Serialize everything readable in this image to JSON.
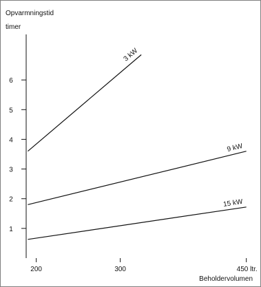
{
  "chart_data": {
    "type": "line",
    "ylabel_line1": "Opvarmningstid",
    "ylabel_line2": "timer",
    "xlabel": "Beholdervolumen",
    "xlim": [
      188,
      456
    ],
    "ylim": [
      0,
      8.6
    ],
    "x_ticks": [
      {
        "value": 200,
        "label": "200"
      },
      {
        "value": 300,
        "label": "300"
      },
      {
        "value": 450,
        "label": "450 ltr."
      }
    ],
    "y_ticks": [
      {
        "value": 1,
        "label": "1"
      },
      {
        "value": 2,
        "label": "2"
      },
      {
        "value": 3,
        "label": "3"
      },
      {
        "value": 4,
        "label": "4"
      },
      {
        "value": 5,
        "label": "5"
      },
      {
        "value": 6,
        "label": "6"
      }
    ],
    "series": [
      {
        "name": "3 kW",
        "x": [
          190,
          325
        ],
        "y": [
          3.6,
          6.85
        ]
      },
      {
        "name": "9 kW",
        "x": [
          190,
          450
        ],
        "y": [
          1.8,
          3.6
        ]
      },
      {
        "name": "15 kW",
        "x": [
          190,
          450
        ],
        "y": [
          0.63,
          1.72
        ]
      }
    ],
    "grid": false,
    "line_color": "#111111"
  }
}
